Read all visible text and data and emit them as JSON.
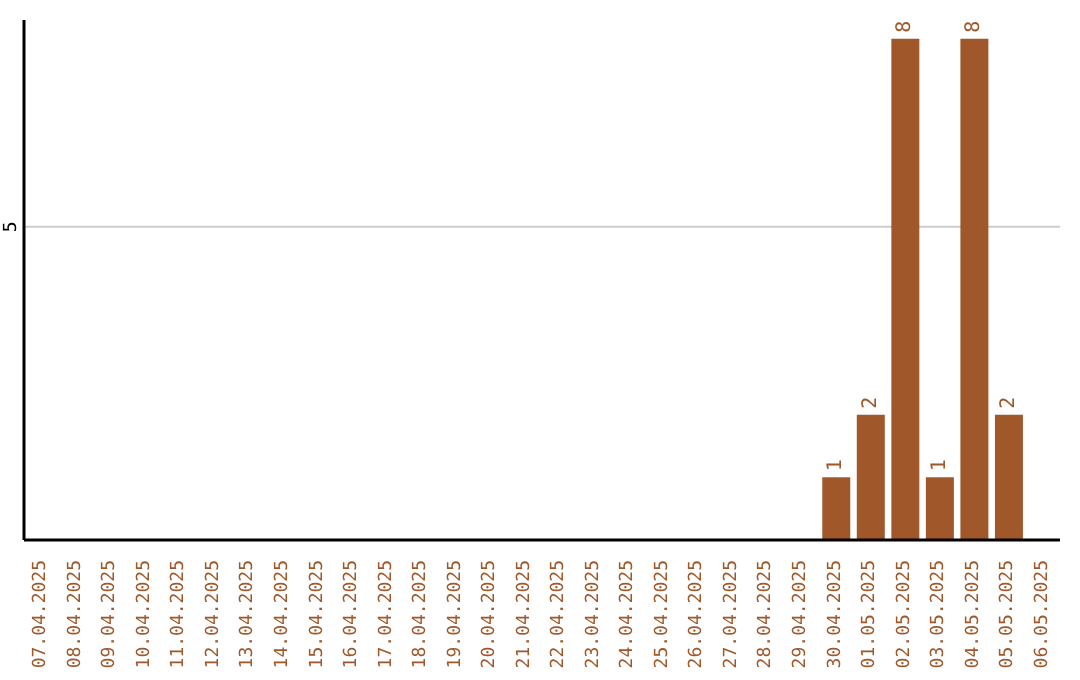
{
  "chart_data": {
    "type": "bar",
    "categories": [
      "07.04.2025",
      "08.04.2025",
      "09.04.2025",
      "10.04.2025",
      "11.04.2025",
      "12.04.2025",
      "13.04.2025",
      "14.04.2025",
      "15.04.2025",
      "16.04.2025",
      "17.04.2025",
      "18.04.2025",
      "19.04.2025",
      "20.04.2025",
      "21.04.2025",
      "22.04.2025",
      "23.04.2025",
      "24.04.2025",
      "25.04.2025",
      "26.04.2025",
      "27.04.2025",
      "28.04.2025",
      "29.04.2025",
      "30.04.2025",
      "01.05.2025",
      "02.05.2025",
      "03.05.2025",
      "04.05.2025",
      "05.05.2025",
      "06.05.2025"
    ],
    "values": [
      null,
      null,
      null,
      null,
      null,
      null,
      null,
      null,
      null,
      null,
      null,
      null,
      null,
      null,
      null,
      null,
      null,
      null,
      null,
      null,
      null,
      null,
      null,
      1,
      2,
      8,
      1,
      8,
      2,
      null
    ],
    "data_labels": true,
    "color": "#a0582a",
    "ylim": [
      0,
      8.3
    ],
    "yticks": [
      5
    ],
    "grid": "y"
  }
}
